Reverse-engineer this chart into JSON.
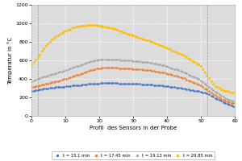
{
  "title": "",
  "xlabel": "Profil  des Sensors in der Probe",
  "ylabel": "Temperatur in °C",
  "xlim": [
    0,
    60
  ],
  "ylim": [
    0,
    1200
  ],
  "yticks": [
    0,
    200,
    400,
    600,
    800,
    1000,
    1200
  ],
  "xticks": [
    0,
    10,
    20,
    30,
    40,
    50,
    60
  ],
  "vlines": [
    2,
    52
  ],
  "figure_bg_color": "#ffffff",
  "plot_bg_color": "#dcdcdc",
  "grid_color": "#ffffff",
  "legend_labels": [
    "t = 15.1 min",
    "t = 17.45 min",
    "t = 19.13 min",
    "t = 29.85 min"
  ],
  "line_colors": [
    "#4472c4",
    "#ed7d31",
    "#a6a6a6",
    "#ffc000"
  ],
  "series": {
    "t151": {
      "x": [
        0,
        1,
        2,
        3,
        5,
        7,
        10,
        12,
        15,
        17,
        20,
        22,
        25,
        27,
        30,
        32,
        35,
        37,
        40,
        42,
        45,
        47,
        50,
        52,
        54,
        56,
        58,
        60
      ],
      "y": [
        270,
        275,
        282,
        290,
        300,
        308,
        318,
        326,
        336,
        345,
        352,
        355,
        353,
        350,
        347,
        344,
        338,
        332,
        322,
        310,
        296,
        280,
        262,
        238,
        198,
        162,
        128,
        100
      ]
    },
    "t1745": {
      "x": [
        0,
        1,
        2,
        3,
        5,
        7,
        10,
        12,
        15,
        17,
        20,
        22,
        25,
        27,
        30,
        32,
        35,
        37,
        40,
        42,
        45,
        47,
        50,
        52,
        54,
        56,
        58,
        60
      ],
      "y": [
        312,
        318,
        325,
        335,
        352,
        370,
        400,
        425,
        462,
        490,
        516,
        520,
        518,
        514,
        508,
        502,
        492,
        480,
        460,
        438,
        408,
        372,
        328,
        278,
        228,
        183,
        152,
        132
      ]
    },
    "t1913": {
      "x": [
        0,
        1,
        2,
        3,
        5,
        7,
        10,
        12,
        15,
        17,
        20,
        22,
        25,
        27,
        30,
        32,
        35,
        37,
        40,
        42,
        45,
        47,
        50,
        52,
        54,
        56,
        58,
        60
      ],
      "y": [
        378,
        388,
        400,
        415,
        438,
        460,
        492,
        520,
        558,
        588,
        606,
        610,
        608,
        603,
        596,
        588,
        576,
        562,
        538,
        510,
        472,
        432,
        386,
        328,
        268,
        218,
        178,
        152
      ]
    },
    "t2985": {
      "x": [
        0,
        1,
        2,
        3,
        5,
        7,
        10,
        12,
        15,
        17,
        20,
        22,
        24,
        25,
        27,
        30,
        32,
        35,
        37,
        40,
        42,
        45,
        47,
        50,
        52,
        54,
        56,
        58,
        60
      ],
      "y": [
        558,
        600,
        640,
        700,
        790,
        855,
        920,
        952,
        974,
        982,
        978,
        960,
        945,
        932,
        905,
        868,
        840,
        808,
        778,
        738,
        698,
        652,
        606,
        542,
        422,
        328,
        288,
        264,
        248
      ]
    }
  }
}
